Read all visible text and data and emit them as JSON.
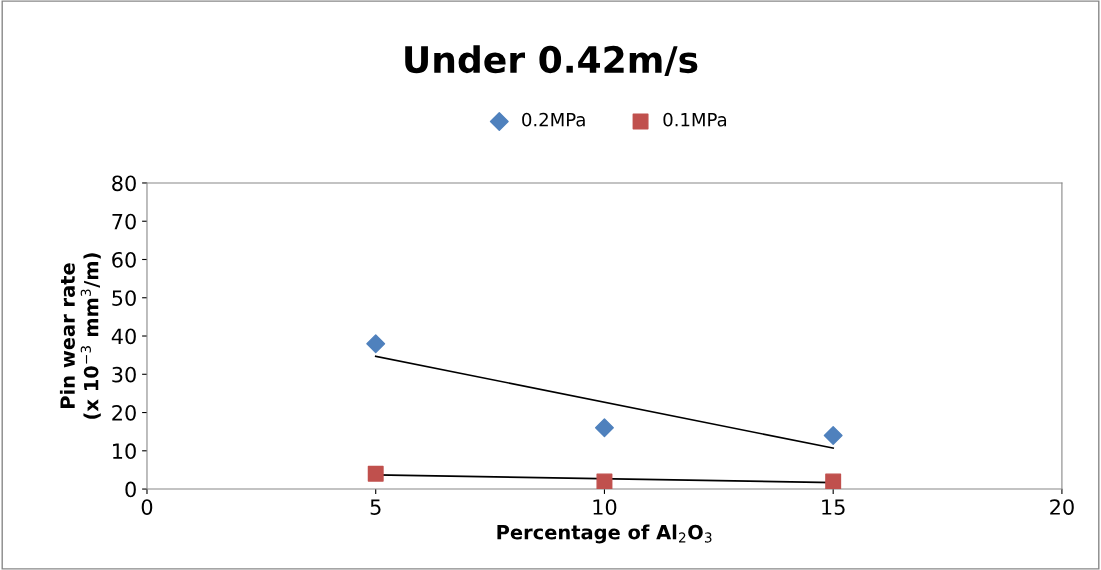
{
  "chart_data": {
    "type": "scatter",
    "title": "Under 0.42m/s",
    "xlabel": "Percentage of Al$_{2}$O$_{3}$",
    "ylabel": "Pin wear rate\n(x 10$^{−3}$ mm$^{3}$/m)",
    "xlim": [
      0,
      20
    ],
    "xticks": [
      0,
      5,
      10,
      15,
      20
    ],
    "ylim": [
      0,
      80
    ],
    "yticks": [
      0,
      10,
      20,
      30,
      40,
      50,
      60,
      70,
      80
    ],
    "grid": false,
    "legend": "top",
    "series": [
      {
        "name": "0.2MPa",
        "color": "#4f81bd",
        "marker": "diamond",
        "x": [
          5,
          10,
          15
        ],
        "values": [
          38,
          16,
          14
        ]
      },
      {
        "name": "0.1MPa",
        "color": "#c0504d",
        "marker": "square",
        "x": [
          5,
          10,
          15
        ],
        "values": [
          4,
          2,
          2
        ]
      },
      {
        "type": "line",
        "color": "#000000",
        "marker": "none",
        "x": [
          5,
          15
        ],
        "values": [
          34.7,
          10.7
        ]
      },
      {
        "type": "line",
        "color": "#000000",
        "marker": "none",
        "x": [
          5,
          15
        ],
        "values": [
          3.7,
          1.7
        ]
      }
    ]
  }
}
